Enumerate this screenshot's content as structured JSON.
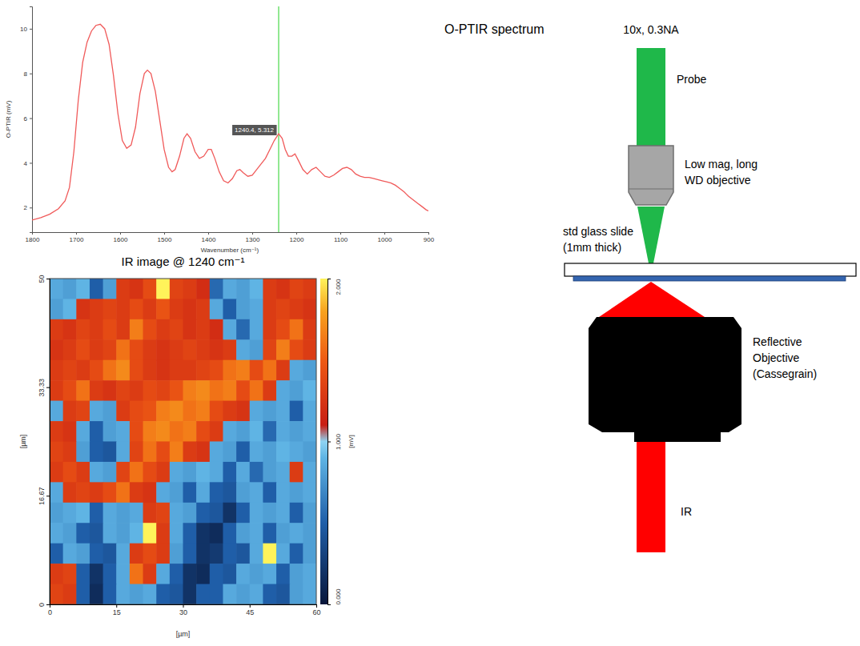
{
  "chart_data": [
    {
      "type": "line",
      "title": "O-PTIR spectrum",
      "x_label": "Wavenumber (cm⁻¹)",
      "y_label": "O-PTIR (mV)",
      "x": [
        1800,
        1780,
        1760,
        1740,
        1725,
        1715,
        1705,
        1695,
        1685,
        1675,
        1665,
        1655,
        1645,
        1635,
        1625,
        1615,
        1605,
        1595,
        1585,
        1575,
        1565,
        1555,
        1545,
        1538,
        1530,
        1520,
        1510,
        1500,
        1490,
        1482,
        1475,
        1465,
        1455,
        1448,
        1440,
        1430,
        1420,
        1410,
        1400,
        1393,
        1385,
        1375,
        1365,
        1355,
        1345,
        1335,
        1328,
        1320,
        1310,
        1300,
        1290,
        1280,
        1270,
        1260,
        1250,
        1240,
        1232,
        1225,
        1218,
        1210,
        1203,
        1195,
        1185,
        1175,
        1165,
        1155,
        1145,
        1135,
        1125,
        1115,
        1105,
        1095,
        1085,
        1075,
        1065,
        1055,
        1045,
        1035,
        1025,
        1015,
        1005,
        995,
        985,
        975,
        965,
        955,
        945,
        935,
        925,
        915,
        905,
        900
      ],
      "series": [
        {
          "color": "#f05a5a",
          "values": [
            1.44,
            1.55,
            1.7,
            1.95,
            2.3,
            2.9,
            4.5,
            6.8,
            8.5,
            9.4,
            9.9,
            10.15,
            10.2,
            10.0,
            9.3,
            7.9,
            6.2,
            5.0,
            4.65,
            4.8,
            5.6,
            7.1,
            8.0,
            8.15,
            8.0,
            7.2,
            5.9,
            4.6,
            3.8,
            3.6,
            3.7,
            4.3,
            5.1,
            5.3,
            5.1,
            4.5,
            4.2,
            4.3,
            4.6,
            4.6,
            4.2,
            3.6,
            3.2,
            3.1,
            3.3,
            3.65,
            3.7,
            3.55,
            3.4,
            3.45,
            3.7,
            3.95,
            4.2,
            4.6,
            5.0,
            5.3,
            5.1,
            4.6,
            4.3,
            4.3,
            4.4,
            4.1,
            3.7,
            3.5,
            3.7,
            3.8,
            3.6,
            3.4,
            3.35,
            3.45,
            3.6,
            3.75,
            3.8,
            3.7,
            3.5,
            3.4,
            3.35,
            3.35,
            3.3,
            3.25,
            3.2,
            3.15,
            3.1,
            3.0,
            2.85,
            2.7,
            2.5,
            2.35,
            2.2,
            2.05,
            1.9,
            1.85
          ]
        }
      ],
      "xlim": [
        1800,
        900
      ],
      "xticks": [
        1800,
        1700,
        1600,
        1500,
        1400,
        1300,
        1200,
        1100,
        1000,
        900
      ],
      "ylim": [
        0.9,
        11
      ],
      "yticks": [
        2,
        4,
        6,
        8,
        10
      ],
      "annotations": [
        {
          "x": 1240,
          "text": "1240.4, 5.312",
          "color": "#6ee06e"
        }
      ]
    },
    {
      "type": "heatmap",
      "title": "IR image @ 1240 cm⁻¹",
      "x_label": "[µm]",
      "y_label": "[µm]",
      "x": [
        1.5,
        4.5,
        7.5,
        10.5,
        13.5,
        16.5,
        19.5,
        22.5,
        25.5,
        28.5,
        31.5,
        34.5,
        37.5,
        40.5,
        43.5,
        46.5,
        49.5,
        52.5,
        55.5,
        58.5
      ],
      "y": [
        48.44,
        45.31,
        42.19,
        39.06,
        35.94,
        32.81,
        29.69,
        26.56,
        23.44,
        20.31,
        17.19,
        14.06,
        10.94,
        7.81,
        4.69,
        1.56
      ],
      "z": [
        [
          0.85,
          0.8,
          0.9,
          0.5,
          0.8,
          1.3,
          1.25,
          1.4,
          2.0,
          1.35,
          1.3,
          1.2,
          0.55,
          0.85,
          0.8,
          0.9,
          1.3,
          1.25,
          1.35,
          1.3
        ],
        [
          0.8,
          0.9,
          1.25,
          1.3,
          1.35,
          1.3,
          1.4,
          1.3,
          1.45,
          1.3,
          1.25,
          1.3,
          0.85,
          0.5,
          0.8,
          0.85,
          1.3,
          1.35,
          1.3,
          1.25
        ],
        [
          1.3,
          1.25,
          1.35,
          1.3,
          1.4,
          1.3,
          1.65,
          1.4,
          1.3,
          1.35,
          1.25,
          1.3,
          1.2,
          0.85,
          0.55,
          0.85,
          1.3,
          1.4,
          1.6,
          1.3
        ],
        [
          1.25,
          1.3,
          1.4,
          1.3,
          1.35,
          1.6,
          1.4,
          1.3,
          1.25,
          1.3,
          1.35,
          1.3,
          1.25,
          1.3,
          0.85,
          0.8,
          1.35,
          1.65,
          1.4,
          1.3
        ],
        [
          1.3,
          1.35,
          1.3,
          1.4,
          1.6,
          1.7,
          1.4,
          1.3,
          1.25,
          1.3,
          1.3,
          1.35,
          1.4,
          1.6,
          1.65,
          1.4,
          1.6,
          1.3,
          0.85,
          0.8
        ],
        [
          1.3,
          1.4,
          1.6,
          1.3,
          1.25,
          1.35,
          1.3,
          1.4,
          1.35,
          1.45,
          1.65,
          1.7,
          1.6,
          1.65,
          1.4,
          1.6,
          1.3,
          0.85,
          0.8,
          0.9
        ],
        [
          0.85,
          1.3,
          1.35,
          0.85,
          0.8,
          1.3,
          1.4,
          1.45,
          1.65,
          1.7,
          1.6,
          1.65,
          1.4,
          1.3,
          1.25,
          0.85,
          0.8,
          0.85,
          0.5,
          0.85
        ],
        [
          1.3,
          1.25,
          0.85,
          0.5,
          0.8,
          0.85,
          1.4,
          1.65,
          1.7,
          1.6,
          1.65,
          1.4,
          1.3,
          0.85,
          0.8,
          0.9,
          0.55,
          0.85,
          0.8,
          0.85
        ],
        [
          1.35,
          1.3,
          0.8,
          0.5,
          0.45,
          0.85,
          1.35,
          1.6,
          1.4,
          1.65,
          1.3,
          1.25,
          0.85,
          0.8,
          0.5,
          0.85,
          0.8,
          0.9,
          0.85,
          0.8
        ],
        [
          1.3,
          1.4,
          1.3,
          0.85,
          0.8,
          1.35,
          1.6,
          1.4,
          1.3,
          0.85,
          0.8,
          0.9,
          0.85,
          0.5,
          0.85,
          0.55,
          0.8,
          0.85,
          1.3,
          0.85
        ],
        [
          0.85,
          1.3,
          1.35,
          1.3,
          1.4,
          1.6,
          1.3,
          1.25,
          0.85,
          0.8,
          0.5,
          0.85,
          0.5,
          0.45,
          0.8,
          0.85,
          0.5,
          0.85,
          0.8,
          0.85
        ],
        [
          0.8,
          0.85,
          0.9,
          0.5,
          0.85,
          0.8,
          0.85,
          1.3,
          1.35,
          0.85,
          0.8,
          0.5,
          0.45,
          0.2,
          0.5,
          0.85,
          0.8,
          0.85,
          0.5,
          0.8
        ],
        [
          0.85,
          0.8,
          0.5,
          0.45,
          0.85,
          0.8,
          0.9,
          2.0,
          1.3,
          0.85,
          0.5,
          0.2,
          0.15,
          0.5,
          0.8,
          0.85,
          0.5,
          0.8,
          0.85,
          0.8
        ],
        [
          0.5,
          0.85,
          0.8,
          0.5,
          0.45,
          0.85,
          1.3,
          1.4,
          1.3,
          0.8,
          0.5,
          0.2,
          0.25,
          0.5,
          0.45,
          0.85,
          2.0,
          0.85,
          0.5,
          0.8
        ],
        [
          1.3,
          1.35,
          0.5,
          0.2,
          0.5,
          0.85,
          1.6,
          1.3,
          0.85,
          0.5,
          0.2,
          0.15,
          0.5,
          0.45,
          0.85,
          0.8,
          0.85,
          0.5,
          0.8,
          0.85
        ],
        [
          1.35,
          1.3,
          0.5,
          0.15,
          0.5,
          0.85,
          0.8,
          0.85,
          0.5,
          0.45,
          0.2,
          0.5,
          0.5,
          0.85,
          0.8,
          0.85,
          0.5,
          0.45,
          0.8,
          0.85
        ]
      ],
      "xlim": [
        0,
        60
      ],
      "xticks": [
        0,
        15,
        30,
        45,
        60
      ],
      "ylim": [
        0,
        50
      ],
      "yticks": [
        0,
        16.67,
        33.33,
        50
      ],
      "colorbar": {
        "range": [
          0,
          2
        ],
        "ticks": [
          {
            "value": 0,
            "label": "0.000"
          },
          {
            "value": 1,
            "label": "1.000"
          },
          {
            "value": 2,
            "label": "2.000"
          }
        ],
        "label": "[mV]"
      }
    }
  ],
  "diagram": {
    "objective_label": "10x, 0.3NA",
    "probe_label": "Probe",
    "probe_objective_label": [
      "Low mag, long",
      "WD objective"
    ],
    "slide_label": [
      "std glass slide",
      "(1mm thick)"
    ],
    "reflective_objective_label": [
      "Reflective",
      "Objective",
      "(Cassegrain)"
    ],
    "ir_label": "IR"
  }
}
